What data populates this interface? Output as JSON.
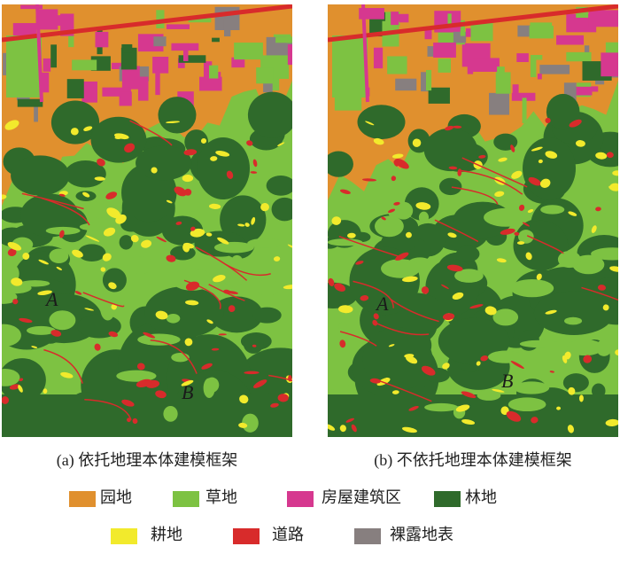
{
  "panels": [
    {
      "caption": "(a) 依托地理本体建模框架",
      "labels": [
        "A",
        "B"
      ]
    },
    {
      "caption": "(b) 不依托地理本体建模框架",
      "labels": [
        "A",
        "B"
      ]
    }
  ],
  "legend": [
    {
      "label": "园地",
      "color": "#e0902e"
    },
    {
      "label": "草地",
      "color": "#7dc242"
    },
    {
      "label": "房屋建筑区",
      "color": "#d6388f"
    },
    {
      "label": "林地",
      "color": "#2f6a2b"
    },
    {
      "label": "耕地",
      "color": "#f2ea2c"
    },
    {
      "label": "道路",
      "color": "#d82b2b"
    },
    {
      "label": "裸露地表",
      "color": "#877f7f"
    }
  ]
}
